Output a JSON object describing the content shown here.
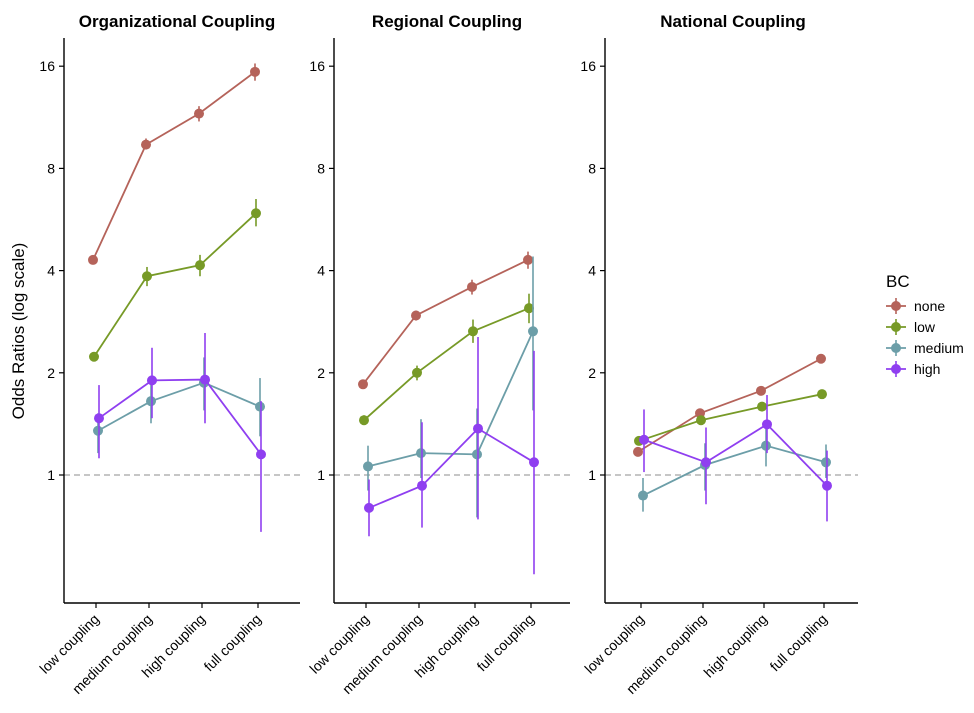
{
  "chart_data": {
    "type": "line",
    "ylabel": "Odds Ratios (log scale)",
    "y_scale": "log2",
    "ylim": [
      0.6,
      18
    ],
    "y_ticks": [
      1,
      2,
      4,
      8,
      16
    ],
    "y_tick_labels": [
      "1",
      "2",
      "4",
      "8",
      "16"
    ],
    "reference_line": {
      "y": 1,
      "style": "dashed",
      "color": "#b3b3b3"
    },
    "categories": [
      "low coupling",
      "medium coupling",
      "high coupling",
      "full coupling"
    ],
    "legend": {
      "title": "BC",
      "position": "right",
      "entries": [
        {
          "name": "none",
          "color": "#b5635a"
        },
        {
          "name": "low",
          "color": "#779a27"
        },
        {
          "name": "medium",
          "color": "#6c9ea8"
        },
        {
          "name": "high",
          "color": "#8f3ff0"
        }
      ]
    },
    "panels": [
      {
        "title": "Organizational Coupling",
        "series": [
          {
            "name": "none",
            "color": "#b5635a",
            "values": [
              4.3,
              9.4,
              11.6,
              15.4
            ],
            "ci_low": [
              4.2,
              9.1,
              11.0,
              14.5
            ],
            "ci_high": [
              4.4,
              9.8,
              12.2,
              16.3
            ]
          },
          {
            "name": "low",
            "color": "#779a27",
            "values": [
              2.23,
              3.85,
              4.15,
              5.9
            ],
            "ci_low": [
              2.18,
              3.6,
              3.85,
              5.4
            ],
            "ci_high": [
              2.28,
              4.1,
              4.45,
              6.5
            ]
          },
          {
            "name": "medium",
            "color": "#6c9ea8",
            "values": [
              1.35,
              1.65,
              1.87,
              1.59
            ],
            "ci_low": [
              1.16,
              1.42,
              1.55,
              1.3
            ],
            "ci_high": [
              1.52,
              1.9,
              2.22,
              1.93
            ]
          },
          {
            "name": "high",
            "color": "#8f3ff0",
            "values": [
              1.47,
              1.9,
              1.91,
              1.15
            ],
            "ci_low": [
              1.12,
              1.47,
              1.42,
              0.68
            ],
            "ci_high": [
              1.84,
              2.37,
              2.62,
              1.65
            ]
          }
        ]
      },
      {
        "title": "Regional Coupling",
        "series": [
          {
            "name": "none",
            "color": "#b5635a",
            "values": [
              1.85,
              2.95,
              3.58,
              4.3
            ],
            "ci_low": [
              1.8,
              2.85,
              3.4,
              4.05
            ],
            "ci_high": [
              1.9,
              3.05,
              3.76,
              4.55
            ]
          },
          {
            "name": "low",
            "color": "#779a27",
            "values": [
              1.45,
              2.0,
              2.65,
              3.1
            ],
            "ci_low": [
              1.41,
              1.9,
              2.45,
              2.8
            ],
            "ci_high": [
              1.5,
              2.1,
              2.87,
              3.42
            ]
          },
          {
            "name": "medium",
            "color": "#6c9ea8",
            "values": [
              1.06,
              1.16,
              1.15,
              2.65
            ],
            "ci_low": [
              0.9,
              0.98,
              0.75,
              1.55
            ],
            "ci_high": [
              1.22,
              1.46,
              1.57,
              4.4
            ]
          },
          {
            "name": "high",
            "color": "#8f3ff0",
            "values": [
              0.8,
              0.93,
              1.37,
              1.09
            ],
            "ci_low": [
              0.66,
              0.7,
              0.74,
              0.51
            ],
            "ci_high": [
              0.97,
              1.43,
              2.55,
              2.32
            ]
          }
        ]
      },
      {
        "title": "National Coupling",
        "series": [
          {
            "name": "none",
            "color": "#b5635a",
            "values": [
              1.17,
              1.52,
              1.77,
              2.2
            ],
            "ci_low": [
              1.14,
              1.47,
              1.72,
              2.15
            ],
            "ci_high": [
              1.2,
              1.57,
              1.82,
              2.25
            ]
          },
          {
            "name": "low",
            "color": "#779a27",
            "values": [
              1.26,
              1.45,
              1.59,
              1.73
            ],
            "ci_low": [
              1.23,
              1.41,
              1.55,
              1.69
            ],
            "ci_high": [
              1.29,
              1.49,
              1.63,
              1.77
            ]
          },
          {
            "name": "medium",
            "color": "#6c9ea8",
            "values": [
              0.87,
              1.07,
              1.22,
              1.09
            ],
            "ci_low": [
              0.78,
              0.9,
              1.06,
              0.98
            ],
            "ci_high": [
              0.98,
              1.24,
              1.38,
              1.23
            ]
          },
          {
            "name": "high",
            "color": "#8f3ff0",
            "values": [
              1.27,
              1.09,
              1.41,
              0.93
            ],
            "ci_low": [
              1.02,
              0.82,
              1.16,
              0.73
            ],
            "ci_high": [
              1.56,
              1.38,
              1.72,
              1.18
            ]
          }
        ]
      }
    ]
  }
}
